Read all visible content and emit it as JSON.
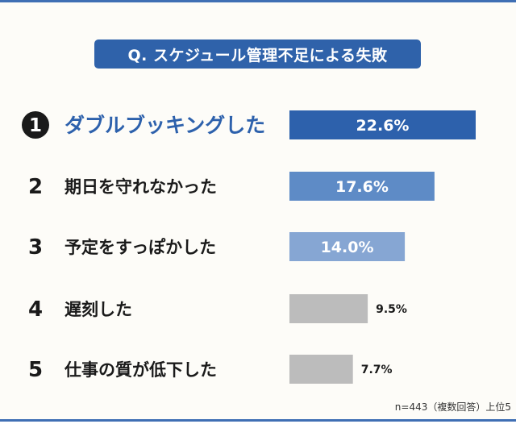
{
  "chart_data": {
    "type": "bar",
    "orientation": "horizontal",
    "title": "Q.  スケジュール管理不足による失敗",
    "ranks": [
      "1",
      "2",
      "3",
      "4",
      "5"
    ],
    "categories": [
      "ダブルブッキングした",
      "期日を守れなかった",
      "予定をすっぽかした",
      "遅刻した",
      "仕事の質が低下した"
    ],
    "values": [
      22.6,
      17.6,
      14.0,
      9.5,
      7.7
    ],
    "value_labels": [
      "22.6%",
      "17.6%",
      "14.0%",
      "9.5%",
      "7.7%"
    ],
    "value_label_inside": [
      true,
      true,
      true,
      false,
      false
    ],
    "bar_colors": [
      "#2d61ac",
      "#5e8bc6",
      "#86a6d3",
      "#bcbcbc",
      "#bcbcbc"
    ],
    "label_colors": [
      "#2d61ac",
      "#1a1a1a",
      "#1a1a1a",
      "#1a1a1a",
      "#1a1a1a"
    ],
    "rank_badge_color": "#1a1a1a",
    "grid": false
  },
  "footnote": "n=443（複数回答）上位5"
}
